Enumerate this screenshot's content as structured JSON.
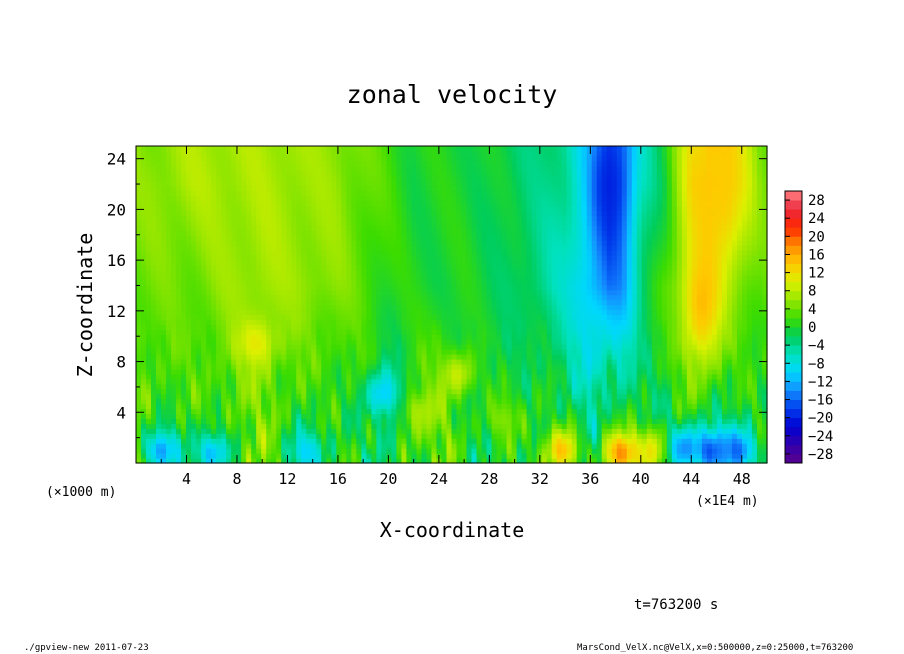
{
  "chart_data": {
    "type": "heatmap",
    "title": "zonal velocity",
    "xlabel": "X-coordinate",
    "ylabel": "Z-coordinate",
    "x_units_left": "(×1000 m)",
    "x_units_right": "(×1E4 m)",
    "x_ticks": [
      "4",
      "8",
      "12",
      "16",
      "20",
      "24",
      "28",
      "32",
      "36",
      "40",
      "44",
      "48"
    ],
    "y_ticks": [
      "4",
      "8",
      "12",
      "16",
      "20",
      "24"
    ],
    "xlim": [
      0,
      50
    ],
    "ylim": [
      0,
      25
    ],
    "colorbar": {
      "labels": [
        "28",
        "24",
        "20",
        "16",
        "12",
        "8",
        "4",
        "0",
        "−4",
        "−8",
        "−12",
        "−16",
        "−20",
        "−24",
        "−28"
      ],
      "values": [
        28,
        24,
        20,
        16,
        12,
        8,
        4,
        0,
        -4,
        -8,
        -12,
        -16,
        -20,
        -24,
        -28
      ],
      "range": [
        -30,
        30
      ]
    },
    "columns_x": [
      0.5,
      2,
      4,
      6,
      8,
      10,
      12,
      14,
      16,
      18,
      20,
      22,
      24,
      26,
      28,
      30,
      32,
      34,
      36,
      37.5,
      38.5,
      40,
      42,
      44,
      45.5,
      47,
      49.5
    ],
    "field_top": [
      5,
      6,
      7,
      7,
      7,
      7,
      7,
      6,
      6,
      4,
      2,
      0,
      0,
      0,
      -1,
      -2,
      -3,
      -5,
      -10,
      -18,
      -16,
      -6,
      0,
      12,
      15,
      13,
      5
    ],
    "field_mid": [
      4,
      4,
      4,
      5,
      6,
      7,
      6,
      6,
      5,
      3,
      1,
      0,
      0,
      0,
      -1,
      -2,
      -4,
      -6,
      -12,
      -15,
      -13,
      -4,
      3,
      8,
      10,
      7,
      3
    ],
    "field_low": [
      3,
      2,
      1,
      2,
      3,
      4,
      2,
      0,
      1,
      0,
      -3,
      2,
      4,
      0,
      -1,
      0,
      1,
      -2,
      -4,
      0,
      -3,
      0,
      -2,
      2,
      0,
      -2,
      1
    ],
    "features": [
      {
        "x": 9.5,
        "z": 9.5,
        "v": 12
      },
      {
        "x": 44.8,
        "z": 12.5,
        "v": 16
      },
      {
        "x": 46.5,
        "z": 21,
        "v": 14
      },
      {
        "x": 37.5,
        "z": 22,
        "v": -20
      },
      {
        "x": 38.5,
        "z": 0.8,
        "v": 22
      },
      {
        "x": 33.8,
        "z": 1,
        "v": 17
      },
      {
        "x": 41,
        "z": 1,
        "v": 14
      },
      {
        "x": 25.5,
        "z": 7,
        "v": 10
      },
      {
        "x": 19.6,
        "z": 5.5,
        "v": -12
      },
      {
        "x": 2,
        "z": 1,
        "v": -16
      },
      {
        "x": 6,
        "z": 0.8,
        "v": -14
      },
      {
        "x": 13.5,
        "z": 0.9,
        "v": -12
      },
      {
        "x": 45.5,
        "z": 1,
        "v": -20
      },
      {
        "x": 43.5,
        "z": 1.2,
        "v": -16
      },
      {
        "x": 47.8,
        "z": 1,
        "v": -18
      },
      {
        "x": 22.5,
        "z": 4,
        "v": 8
      },
      {
        "x": 29,
        "z": 3.5,
        "v": 6
      }
    ]
  },
  "annotation_time": "t=763200 s",
  "footer_left": "./gpview-new  2011-07-23",
  "footer_right": "MarsCond_VelX.nc@VelX,x=0:500000,z=0:25000,t=763200"
}
